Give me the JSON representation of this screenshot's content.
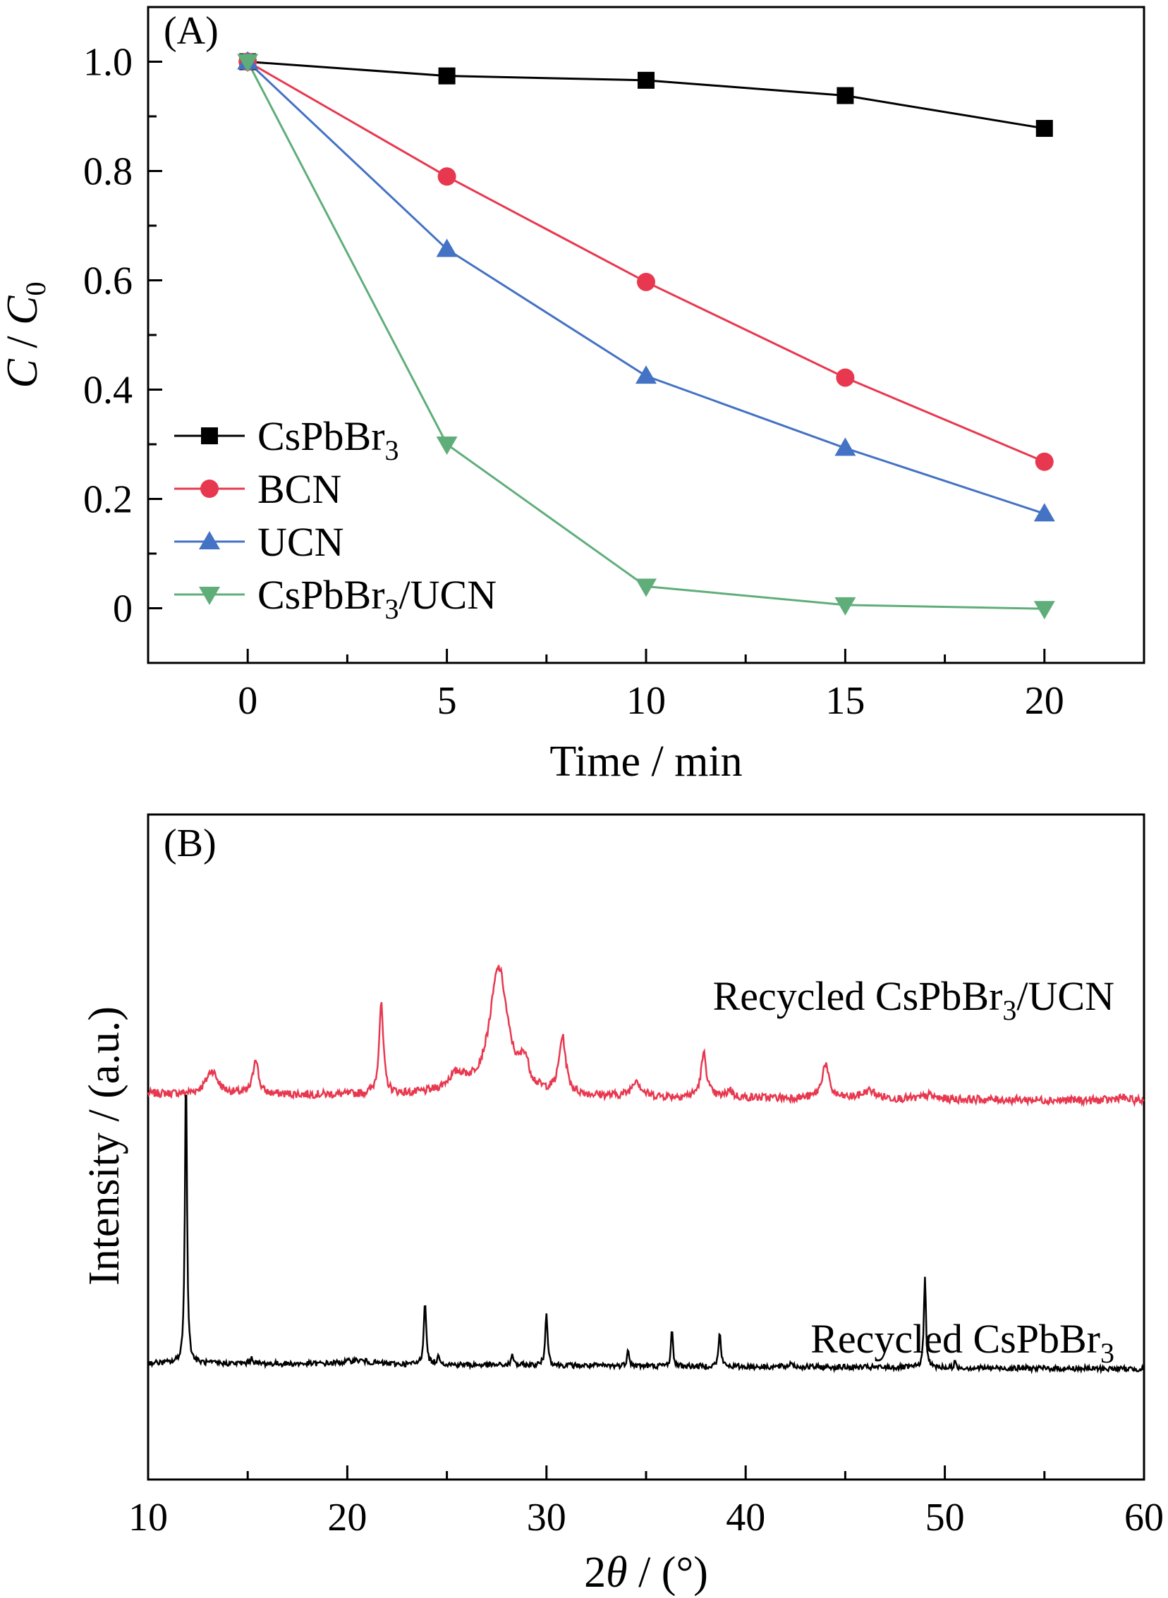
{
  "chart_data": [
    {
      "panel": "(A)",
      "type": "line",
      "xlabel": "Time / min",
      "ylabel_parts": [
        "C",
        " / ",
        "C",
        "0"
      ],
      "xlim": [
        -2.5,
        22.5
      ],
      "ylim": [
        -0.1,
        1.1
      ],
      "xticks": [
        0,
        5,
        10,
        15,
        20
      ],
      "xtick_labels": [
        "0",
        "5",
        "10",
        "15",
        "20"
      ],
      "yticks": [
        0,
        0.2,
        0.4,
        0.6,
        0.8,
        1.0
      ],
      "ytick_labels": [
        "0",
        "0.2",
        "0.4",
        "0.6",
        "0.8",
        "1.0"
      ],
      "x": [
        0,
        5,
        10,
        15,
        20
      ],
      "legend_position": "middle-left",
      "series": [
        {
          "name": "CsPbBr",
          "name_sub": "3",
          "name_suffix": "",
          "color": "#000000",
          "marker": "square",
          "values": [
            1.0,
            0.974,
            0.966,
            0.938,
            0.878
          ]
        },
        {
          "name": "BCN",
          "name_sub": "",
          "name_suffix": "",
          "color": "#e8384f",
          "marker": "circle",
          "values": [
            1.0,
            0.79,
            0.597,
            0.422,
            0.268
          ]
        },
        {
          "name": "UCN",
          "name_sub": "",
          "name_suffix": "",
          "color": "#4472c4",
          "marker": "triangle-up",
          "values": [
            1.0,
            0.657,
            0.425,
            0.293,
            0.173
          ]
        },
        {
          "name": "CsPbBr",
          "name_sub": "3",
          "name_suffix": "/UCN",
          "color": "#5fae7a",
          "marker": "triangle-down",
          "values": [
            1.0,
            0.3,
            0.04,
            0.006,
            -0.001
          ]
        }
      ]
    },
    {
      "panel": "(B)",
      "type": "line",
      "xlabel_parts": [
        "2",
        "θ",
        " / (°)"
      ],
      "ylabel": "Intensity / (a.u.)",
      "xlim": [
        10,
        60
      ],
      "xticks": [
        10,
        20,
        30,
        40,
        50,
        60
      ],
      "xtick_labels": [
        "10",
        "20",
        "30",
        "40",
        "50",
        "60"
      ],
      "series": [
        {
          "name": "Recycled CsPbBr",
          "name_sub": "3",
          "name_suffix": "/UCN",
          "color": "#e8384f",
          "baseline": 0.58,
          "noise": 0.006,
          "peaks": [
            [
              13.2,
              0.035,
              0.35
            ],
            [
              15.4,
              0.055,
              0.15
            ],
            [
              21.7,
              0.135,
              0.13
            ],
            [
              25.5,
              0.025,
              0.6
            ],
            [
              27.6,
              0.19,
              0.55
            ],
            [
              28.9,
              0.04,
              0.25
            ],
            [
              30.8,
              0.085,
              0.2
            ],
            [
              34.5,
              0.025,
              0.25
            ],
            [
              37.9,
              0.065,
              0.17
            ],
            [
              39.2,
              0.012,
              0.15
            ],
            [
              44.0,
              0.052,
              0.2
            ],
            [
              46.2,
              0.012,
              0.4
            ],
            [
              49.2,
              0.006,
              0.3
            ],
            [
              58.8,
              0.005,
              0.3
            ]
          ]
        },
        {
          "name": "Recycled CsPbBr",
          "name_sub": "3",
          "name_suffix": "",
          "color": "#000000",
          "baseline": 0.175,
          "noise": 0.004,
          "peaks": [
            [
              11.9,
              0.45,
              0.06
            ],
            [
              15.2,
              0.008,
              0.1
            ],
            [
              20.5,
              0.006,
              0.8
            ],
            [
              23.9,
              0.098,
              0.07
            ],
            [
              24.6,
              0.012,
              0.1
            ],
            [
              28.3,
              0.015,
              0.07
            ],
            [
              30.0,
              0.08,
              0.07
            ],
            [
              34.1,
              0.028,
              0.06
            ],
            [
              36.3,
              0.054,
              0.06
            ],
            [
              38.7,
              0.05,
              0.07
            ],
            [
              42.3,
              0.008,
              0.08
            ],
            [
              49.0,
              0.14,
              0.06
            ],
            [
              50.5,
              0.008,
              0.06
            ]
          ]
        }
      ]
    }
  ]
}
